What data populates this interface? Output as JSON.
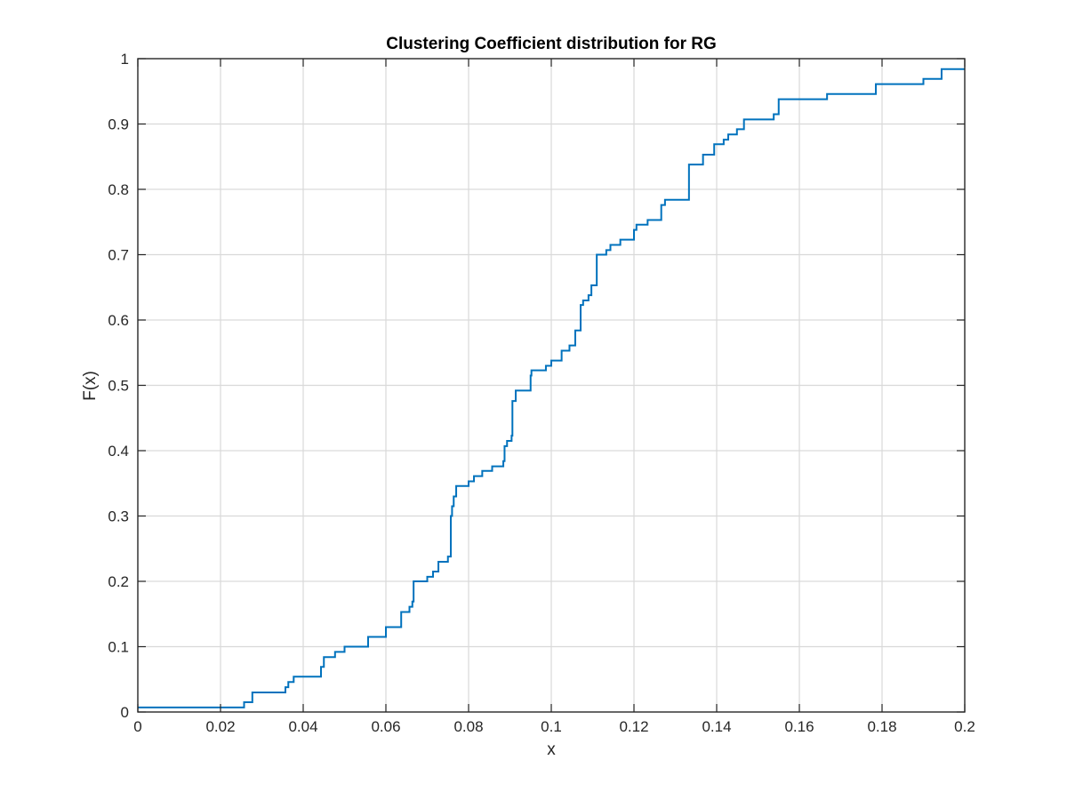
{
  "chart_data": {
    "type": "line",
    "title": "Clustering Coefficient distribution for RG",
    "xlabel": "x",
    "ylabel": "F(x)",
    "xlim": [
      0,
      0.2
    ],
    "ylim": [
      0,
      1
    ],
    "xticks": [
      0,
      0.02,
      0.04,
      0.06,
      0.08,
      0.1,
      0.12,
      0.14,
      0.16,
      0.18,
      0.2
    ],
    "xtick_labels": [
      "0",
      "0.02",
      "0.04",
      "0.06",
      "0.08",
      "0.1",
      "0.12",
      "0.14",
      "0.16",
      "0.18",
      "0.2"
    ],
    "yticks": [
      0,
      0.1,
      0.2,
      0.3,
      0.4,
      0.5,
      0.6,
      0.7,
      0.8,
      0.9,
      1
    ],
    "ytick_labels": [
      "0",
      "0.1",
      "0.2",
      "0.3",
      "0.4",
      "0.5",
      "0.6",
      "0.7",
      "0.8",
      "0.9",
      "1"
    ],
    "grid": true,
    "line_style": "stairs",
    "series_color": "#0072bd",
    "series": [
      {
        "x": [
          0,
          0.0257,
          0.0277,
          0.0357,
          0.0364,
          0.0377,
          0.0443,
          0.045,
          0.0477,
          0.05,
          0.0557,
          0.06,
          0.0637,
          0.0657,
          0.0664,
          0.0667,
          0.07,
          0.0714,
          0.0727,
          0.075,
          0.0757,
          0.076,
          0.0764,
          0.077,
          0.08,
          0.0813,
          0.0833,
          0.0857,
          0.0884,
          0.0887,
          0.0893,
          0.0904,
          0.0906,
          0.0914,
          0.095,
          0.0952,
          0.0987,
          0.1,
          0.1025,
          0.1044,
          0.1058,
          0.1071,
          0.1077,
          0.109,
          0.1097,
          0.111,
          0.1133,
          0.1143,
          0.1167,
          0.12,
          0.1206,
          0.1233,
          0.1266,
          0.1275,
          0.1285,
          0.1333,
          0.1367,
          0.1394,
          0.1417,
          0.1428,
          0.1449,
          0.1466,
          0.1538,
          0.155,
          0.1667,
          0.1785,
          0.19,
          0.1944,
          0.2
        ],
        "values": [
          0.007,
          0.015,
          0.03,
          0.038,
          0.046,
          0.054,
          0.069,
          0.084,
          0.092,
          0.1,
          0.115,
          0.13,
          0.153,
          0.161,
          0.169,
          0.2,
          0.207,
          0.215,
          0.23,
          0.238,
          0.3,
          0.315,
          0.33,
          0.346,
          0.353,
          0.361,
          0.369,
          0.376,
          0.384,
          0.407,
          0.415,
          0.423,
          0.476,
          0.492,
          0.515,
          0.523,
          0.53,
          0.538,
          0.553,
          0.561,
          0.584,
          0.623,
          0.63,
          0.638,
          0.653,
          0.7,
          0.707,
          0.715,
          0.723,
          0.738,
          0.746,
          0.753,
          0.776,
          0.784,
          0.784,
          0.838,
          0.853,
          0.869,
          0.876,
          0.884,
          0.892,
          0.907,
          0.915,
          0.938,
          0.946,
          0.961,
          0.969,
          0.984,
          0.984
        ]
      }
    ]
  }
}
